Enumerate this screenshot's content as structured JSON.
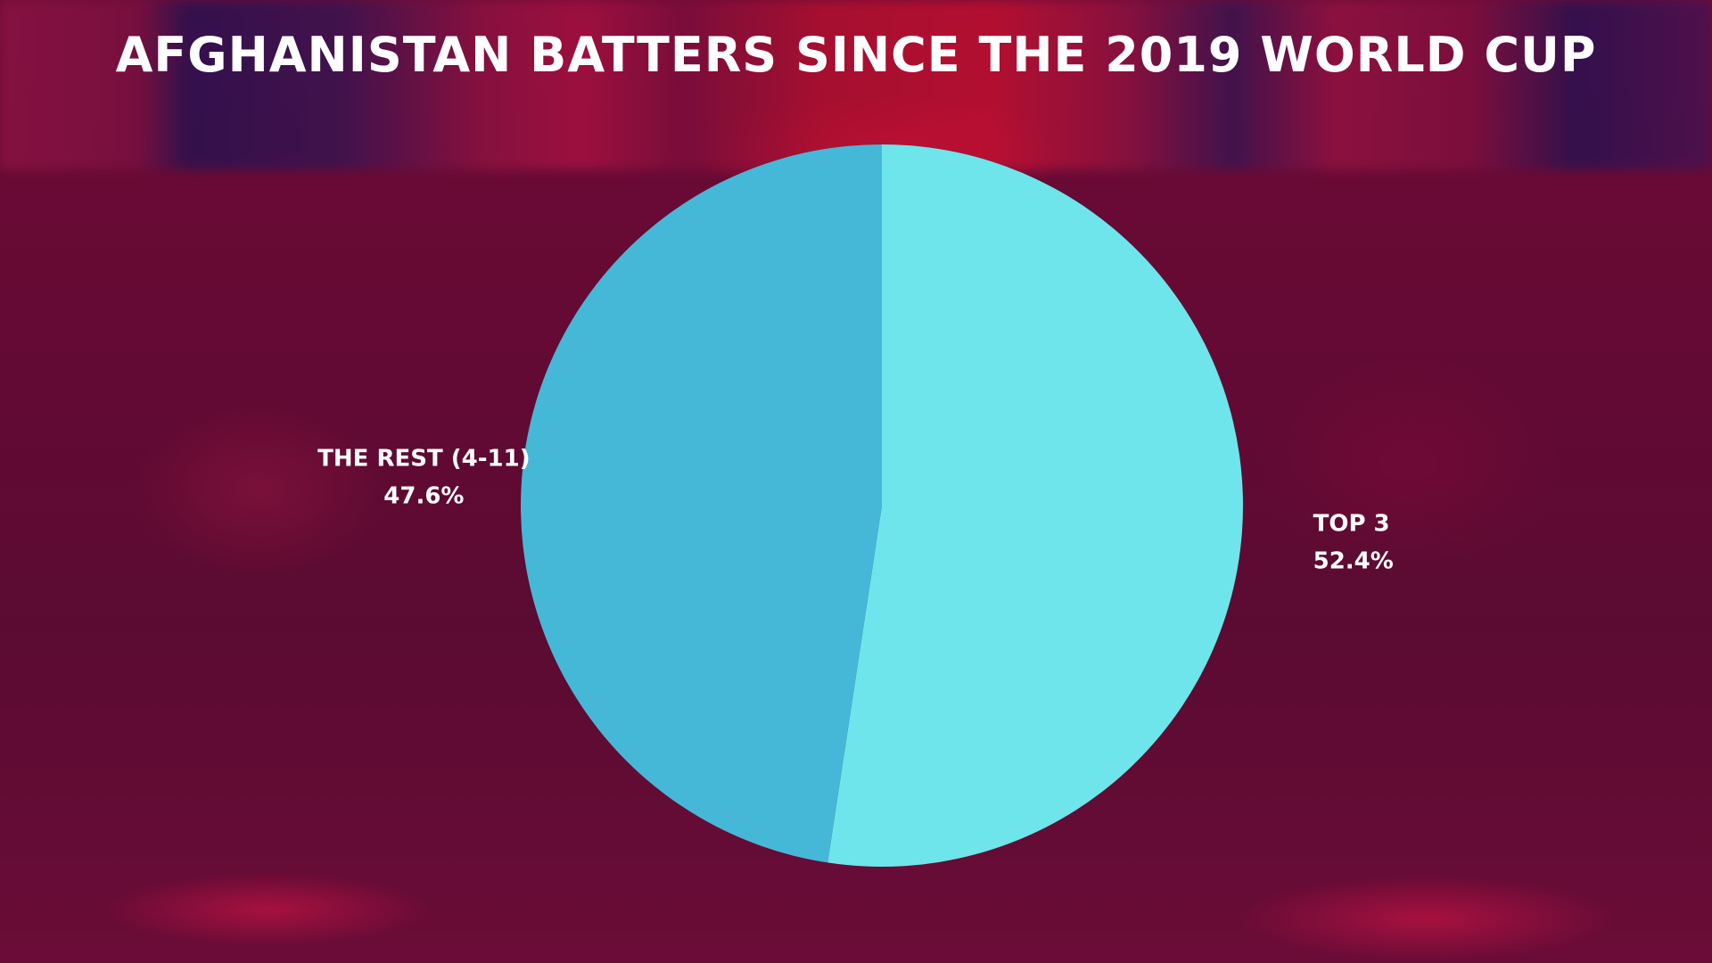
{
  "chart_data": {
    "type": "pie",
    "title": "AFGHANISTAN BATTERS SINCE THE 2019 WORLD CUP",
    "slices": [
      {
        "label": "TOP 3",
        "value": 52.4,
        "value_label": "52.4%",
        "color": "#6ee5ea"
      },
      {
        "label": "THE REST (4-11)",
        "value": 47.6,
        "value_label": "47.6%",
        "color": "#45b8d8"
      }
    ],
    "start_angle_deg": 0,
    "direction": "clockwise"
  }
}
